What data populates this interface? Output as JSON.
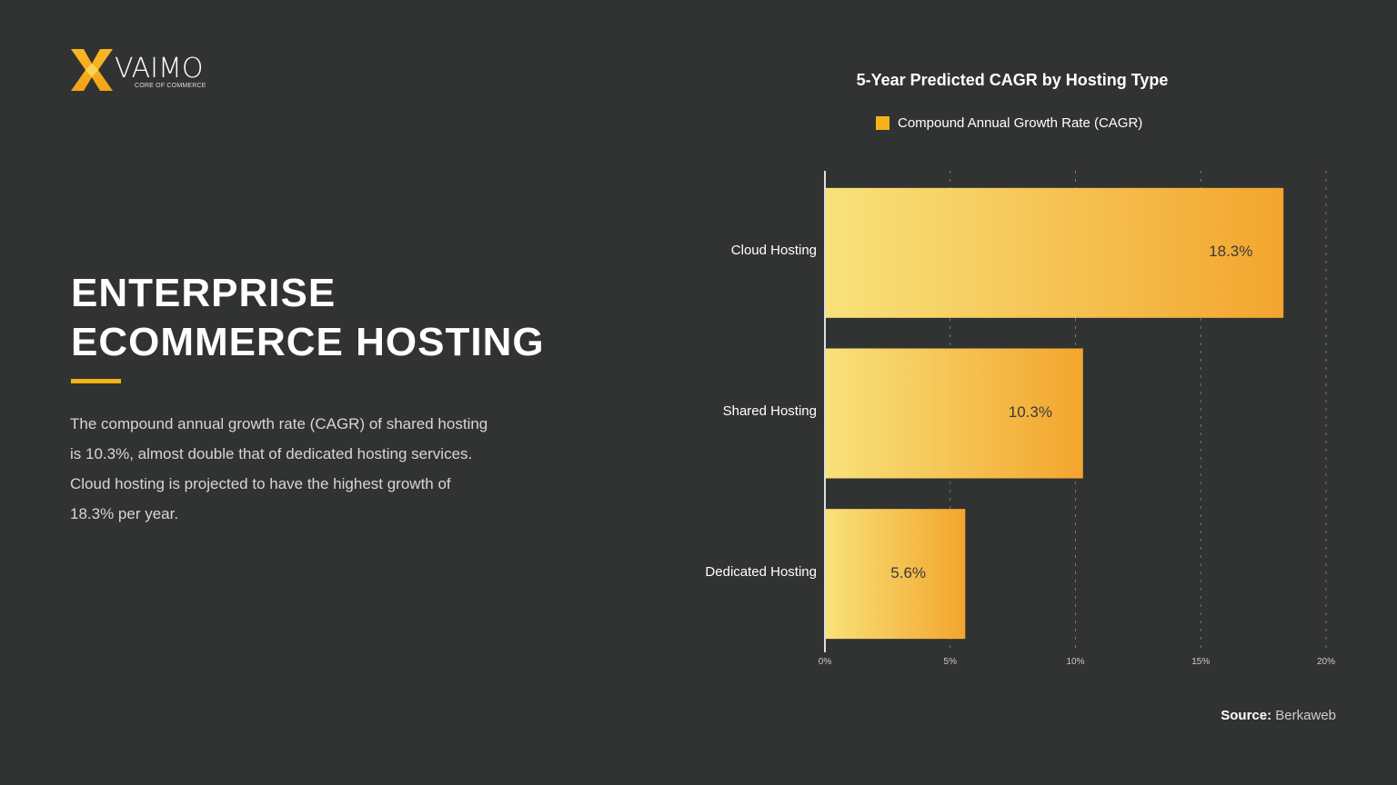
{
  "brand": {
    "name": "VAIMO",
    "tagline": "CORE OF COMMERCE"
  },
  "headline": [
    "ENTERPRISE",
    "ECOMMERCE HOSTING"
  ],
  "description": "The compound annual growth rate (CAGR) of shared hosting is 10.3%, almost double that of dedicated hosting services. Cloud hosting is projected to have the highest growth of 18.3% per year.",
  "source": {
    "label": "Source:",
    "value": "Berkaweb"
  },
  "colors": {
    "background": "#313232",
    "accent": "#f5b21a",
    "bar_start": "#f8e27a",
    "bar_end": "#f3a52e"
  },
  "chart_data": {
    "type": "bar",
    "orientation": "horizontal",
    "title": "5-Year Predicted CAGR by Hosting Type",
    "legend": [
      "Compound Annual Growth Rate (CAGR)"
    ],
    "legend_placement": "top",
    "categories": [
      "Cloud Hosting",
      "Shared Hosting",
      "Dedicated Hosting"
    ],
    "values": [
      18.3,
      10.3,
      5.6
    ],
    "data_labels": [
      "18.3%",
      "10.3%",
      "5.6%"
    ],
    "xlim": [
      0,
      20
    ],
    "xticks": [
      0,
      5,
      10,
      15,
      20
    ],
    "xtick_labels": [
      "0%",
      "5%",
      "10%",
      "15%",
      "20%"
    ],
    "grid": true
  }
}
